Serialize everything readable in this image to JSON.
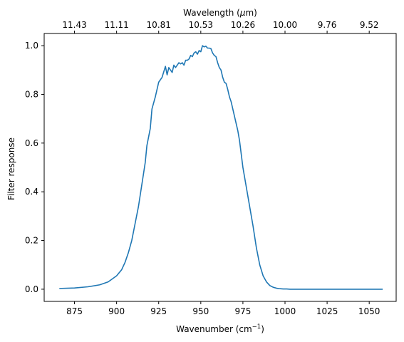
{
  "chart_data": {
    "type": "line",
    "title": "",
    "xlabel": "Wavenumber (cm",
    "xlabel_sup": "−1",
    "xlabel_close": ")",
    "ylabel": "Filter response",
    "top_axis_label_prefix": "Wavelength (",
    "top_axis_label_symbol": "μ",
    "top_axis_label_suffix": "m)",
    "xlim": [
      857,
      1066
    ],
    "ylim": [
      -0.05,
      1.05
    ],
    "x_ticks": [
      875,
      900,
      925,
      950,
      975,
      1000,
      1025,
      1050
    ],
    "x_tick_labels": [
      "875",
      "900",
      "925",
      "950",
      "975",
      "1000",
      "1025",
      "1050"
    ],
    "y_ticks": [
      0.0,
      0.2,
      0.4,
      0.6,
      0.8,
      1.0
    ],
    "y_tick_labels": [
      "0.0",
      "0.2",
      "0.4",
      "0.6",
      "0.8",
      "1.0"
    ],
    "top_ticks": [
      875,
      900,
      925,
      950,
      975,
      1000,
      1025,
      1050
    ],
    "top_tick_labels": [
      "11.43",
      "11.11",
      "10.81",
      "10.53",
      "10.26",
      "10.00",
      "9.76",
      "9.52"
    ],
    "grid": false,
    "line_color": "#1f77b4",
    "series": [
      {
        "name": "",
        "x": [
          866,
          875,
          883,
          890,
          895,
          900,
          903,
          905,
          907,
          909,
          911,
          913,
          915,
          917,
          918,
          920,
          921,
          923,
          925,
          927,
          929,
          930,
          931,
          932,
          933,
          934,
          935,
          936,
          937,
          938,
          939,
          940,
          941,
          942,
          943,
          944,
          945,
          946,
          947,
          948,
          949,
          950,
          951,
          952,
          953,
          954,
          955,
          956,
          957,
          958,
          959,
          960,
          961,
          962,
          963,
          964,
          965,
          966,
          967,
          968,
          969,
          970,
          971,
          972,
          973,
          975,
          977,
          979,
          981,
          983,
          985,
          987,
          989,
          991,
          993,
          995,
          997,
          999,
          1001,
          1003,
          1005,
          1008,
          1012,
          1020,
          1030,
          1040,
          1050,
          1058
        ],
        "y": [
          0.003,
          0.005,
          0.01,
          0.018,
          0.03,
          0.055,
          0.08,
          0.11,
          0.15,
          0.2,
          0.27,
          0.34,
          0.43,
          0.52,
          0.59,
          0.66,
          0.74,
          0.79,
          0.85,
          0.87,
          0.915,
          0.88,
          0.91,
          0.9,
          0.89,
          0.92,
          0.91,
          0.92,
          0.93,
          0.925,
          0.93,
          0.92,
          0.94,
          0.94,
          0.945,
          0.96,
          0.955,
          0.97,
          0.975,
          0.965,
          0.98,
          0.975,
          1.0,
          0.995,
          0.998,
          0.99,
          0.99,
          0.988,
          0.97,
          0.96,
          0.955,
          0.93,
          0.91,
          0.9,
          0.87,
          0.85,
          0.845,
          0.82,
          0.79,
          0.77,
          0.74,
          0.71,
          0.68,
          0.65,
          0.61,
          0.5,
          0.42,
          0.34,
          0.26,
          0.17,
          0.1,
          0.055,
          0.03,
          0.015,
          0.008,
          0.004,
          0.002,
          0.001,
          0.001,
          0.0,
          0.0,
          0.0,
          0.0,
          0.0,
          0.0,
          0.0,
          0.0,
          0.0
        ]
      }
    ]
  }
}
